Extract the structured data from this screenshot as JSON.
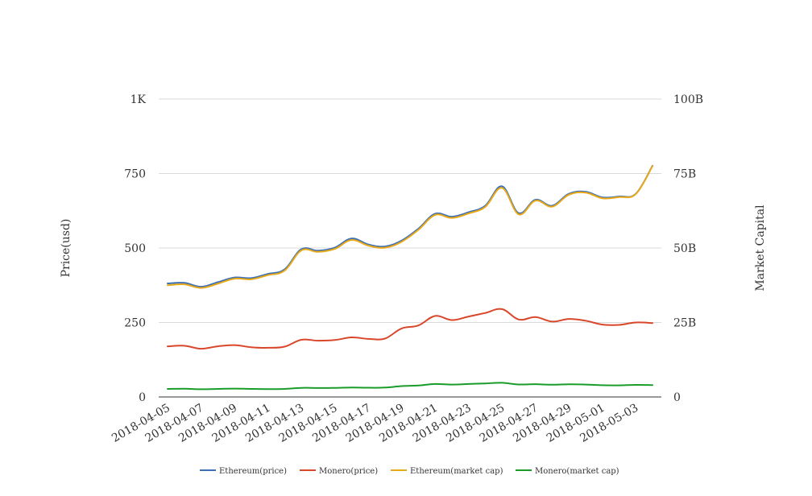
{
  "chart_data": {
    "type": "line",
    "title": "",
    "xlabel": "",
    "ylabel": "Price(usd)",
    "y2label": "Market Capital",
    "ylim": [
      0,
      1000
    ],
    "y2lim": [
      0,
      100000000000
    ],
    "y_ticks": [
      "0",
      "250",
      "500",
      "750",
      "1K"
    ],
    "y_tick_values": [
      0,
      250,
      500,
      750,
      1000
    ],
    "y2_ticks": [
      "0",
      "25B",
      "50B",
      "75B",
      "100B"
    ],
    "grid": true,
    "legend_position": "bottom",
    "x_tick_labels": [
      "2018-04-05",
      "2018-04-07",
      "2018-04-09",
      "2018-04-11",
      "2018-04-13",
      "2018-04-15",
      "2018-04-17",
      "2018-04-19",
      "2018-04-21",
      "2018-04-23",
      "2018-04-25",
      "2018-04-27",
      "2018-04-29",
      "2018-05-01",
      "2018-05-03"
    ],
    "x": [
      "2018-04-05",
      "2018-04-06",
      "2018-04-07",
      "2018-04-08",
      "2018-04-09",
      "2018-04-10",
      "2018-04-11",
      "2018-04-12",
      "2018-04-13",
      "2018-04-14",
      "2018-04-15",
      "2018-04-16",
      "2018-04-17",
      "2018-04-18",
      "2018-04-19",
      "2018-04-20",
      "2018-04-21",
      "2018-04-22",
      "2018-04-23",
      "2018-04-24",
      "2018-04-25",
      "2018-04-26",
      "2018-04-27",
      "2018-04-28",
      "2018-04-29",
      "2018-04-30",
      "2018-05-01",
      "2018-05-02",
      "2018-05-03",
      "2018-05-04"
    ],
    "series": [
      {
        "name": "Ethereum(price)",
        "color": "#3b6fb6",
        "axis": "left",
        "values": [
          381,
          383,
          370,
          385,
          401,
          399,
          413,
          428,
          496,
          491,
          501,
          532,
          512,
          505,
          525,
          565,
          615,
          605,
          620,
          642,
          707,
          617,
          662,
          642,
          682,
          689,
          670,
          673,
          682,
          776
        ]
      },
      {
        "name": "Monero(price)",
        "color": "#d9472b",
        "axis": "left",
        "values": [
          170,
          172,
          162,
          170,
          174,
          167,
          165,
          169,
          192,
          189,
          191,
          200,
          195,
          196,
          230,
          240,
          272,
          258,
          270,
          282,
          295,
          260,
          268,
          253,
          262,
          256,
          243,
          242,
          250,
          248
        ]
      },
      {
        "name": "Ethereum(market cap)",
        "color": "#e8a919",
        "axis": "right",
        "values": [
          37500000000,
          37800000000,
          36600000000,
          38000000000,
          39700000000,
          39500000000,
          40900000000,
          42400000000,
          49200000000,
          48700000000,
          49700000000,
          52700000000,
          50800000000,
          50100000000,
          52100000000,
          56100000000,
          61100000000,
          60100000000,
          61600000000,
          63800000000,
          70200000000,
          61300000000,
          65900000000,
          63900000000,
          67900000000,
          68600000000,
          66700000000,
          67100000000,
          68100000000,
          77500000000
        ]
      },
      {
        "name": "Monero(market cap)",
        "color": "#1a9c2a",
        "axis": "right",
        "values": [
          2700000000,
          2750000000,
          2600000000,
          2700000000,
          2800000000,
          2700000000,
          2650000000,
          2700000000,
          3050000000,
          3000000000,
          3050000000,
          3200000000,
          3100000000,
          3150000000,
          3650000000,
          3850000000,
          4350000000,
          4150000000,
          4350000000,
          4550000000,
          4750000000,
          4200000000,
          4300000000,
          4100000000,
          4250000000,
          4150000000,
          3950000000,
          3900000000,
          4050000000,
          4000000000
        ]
      }
    ]
  }
}
